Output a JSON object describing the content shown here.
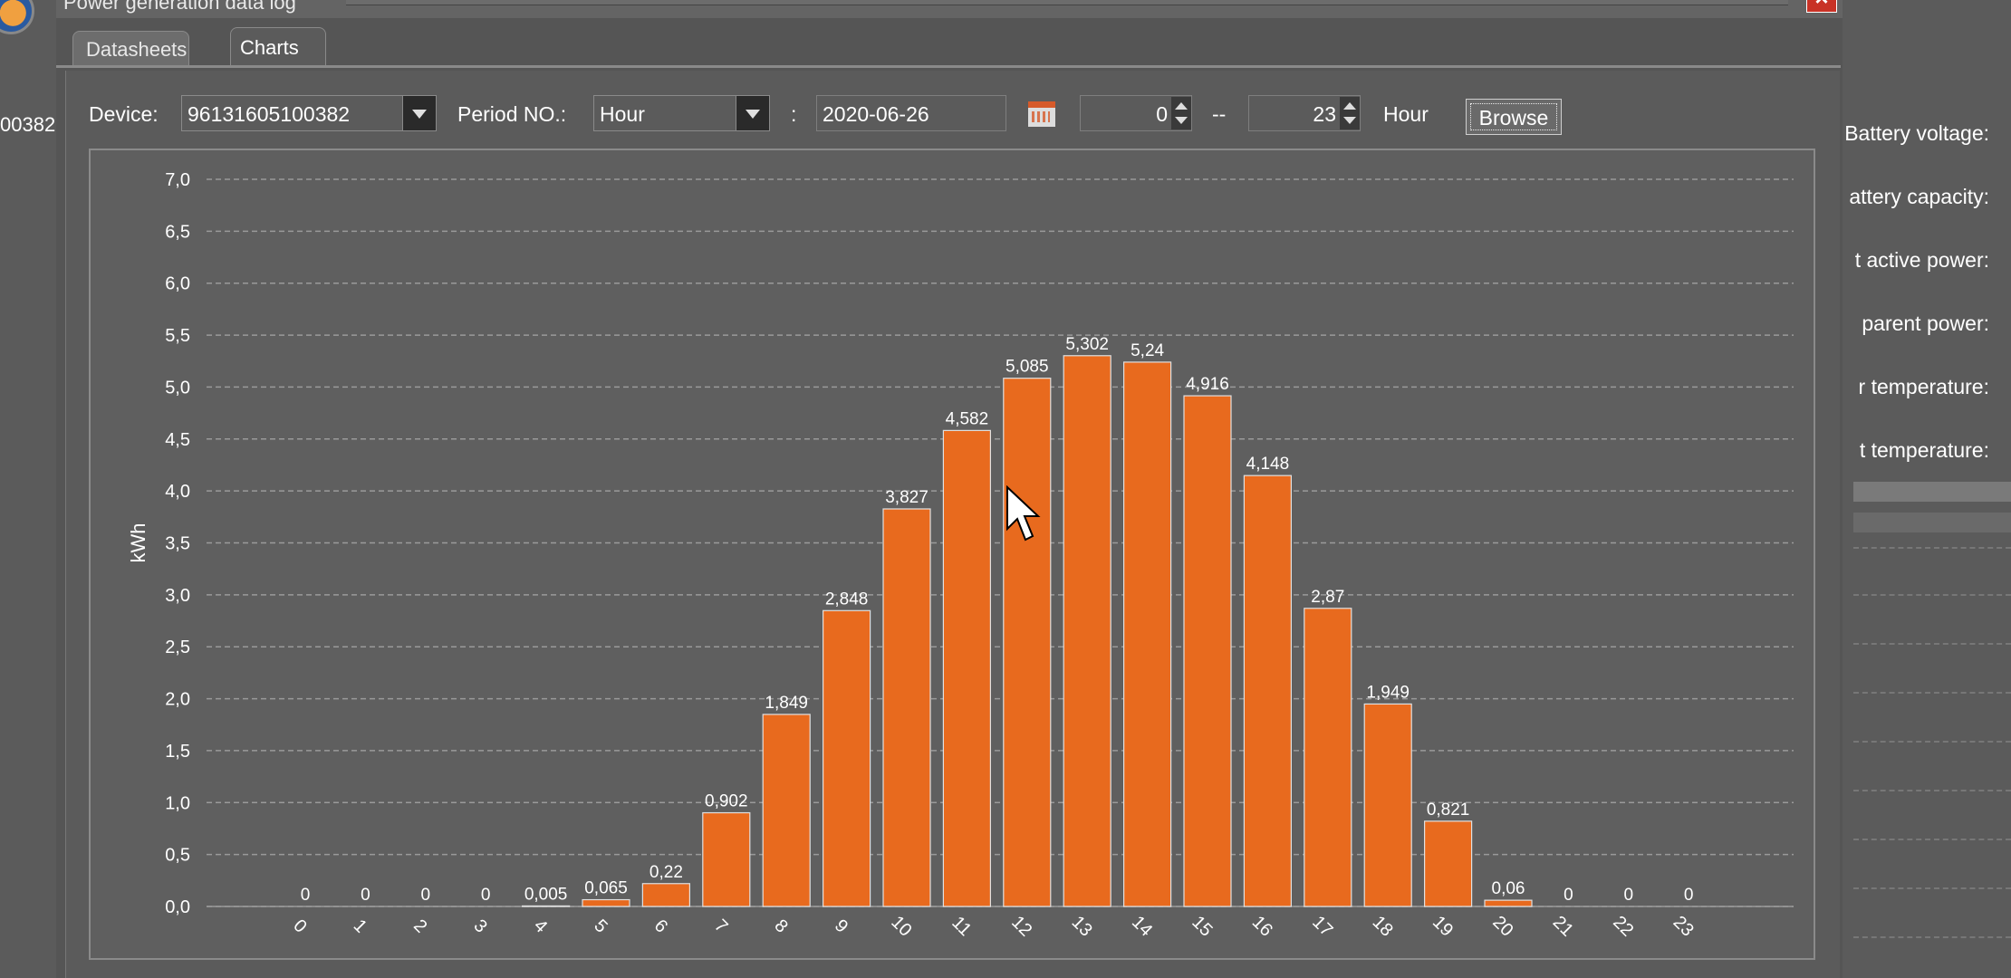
{
  "window": {
    "title": "Power generation data log",
    "close_icon": "close-icon"
  },
  "tabs": [
    {
      "label": "Datasheets",
      "active": false
    },
    {
      "label": "Charts",
      "active": true
    }
  ],
  "toolbar": {
    "device_label": "Device:",
    "device_value": "96131605100382",
    "period_label": "Period NO.:",
    "period_value": "Hour",
    "colon": ":",
    "date_value": "2020-06-26",
    "calendar_icon": "calendar-icon",
    "from_value": "0",
    "dash": "--",
    "to_value": "23",
    "unit_label": "Hour",
    "browse_label": "Browse"
  },
  "background": {
    "left_fragment": "00382",
    "right_labels": [
      "Battery voltage:",
      "attery capacity:",
      "t active power:",
      "parent power:",
      "r temperature:",
      "t temperature:"
    ]
  },
  "chart_data": {
    "type": "bar",
    "title": "",
    "xlabel": "",
    "ylabel": "kWh",
    "ylim": [
      0,
      7.0
    ],
    "y_ticks": [
      "0,0",
      "0,5",
      "1,0",
      "1,5",
      "2,0",
      "2,5",
      "3,0",
      "3,5",
      "4,0",
      "4,5",
      "5,0",
      "5,5",
      "6,0",
      "6,5",
      "7,0"
    ],
    "grid": true,
    "bar_color": "#e86a1e",
    "categories": [
      "0",
      "1",
      "2",
      "3",
      "4",
      "5",
      "6",
      "7",
      "8",
      "9",
      "10",
      "11",
      "12",
      "13",
      "14",
      "15",
      "16",
      "17",
      "18",
      "19",
      "20",
      "21",
      "22",
      "23"
    ],
    "values": [
      0,
      0,
      0,
      0,
      0.005,
      0.065,
      0.22,
      0.902,
      1.849,
      2.848,
      3.827,
      4.582,
      5.085,
      5.302,
      5.24,
      4.916,
      4.148,
      2.87,
      1.949,
      0.821,
      0.06,
      0,
      0,
      0
    ],
    "value_labels": [
      "0",
      "0",
      "0",
      "0",
      "0,005",
      "0,065",
      "0,22",
      "0,902",
      "1,849",
      "2,848",
      "3,827",
      "4,582",
      "5,085",
      "5,302",
      "5,24",
      "4,916",
      "4,148",
      "2,87",
      "1,949",
      "0,821",
      "0,06",
      "0",
      "0",
      "0"
    ]
  }
}
